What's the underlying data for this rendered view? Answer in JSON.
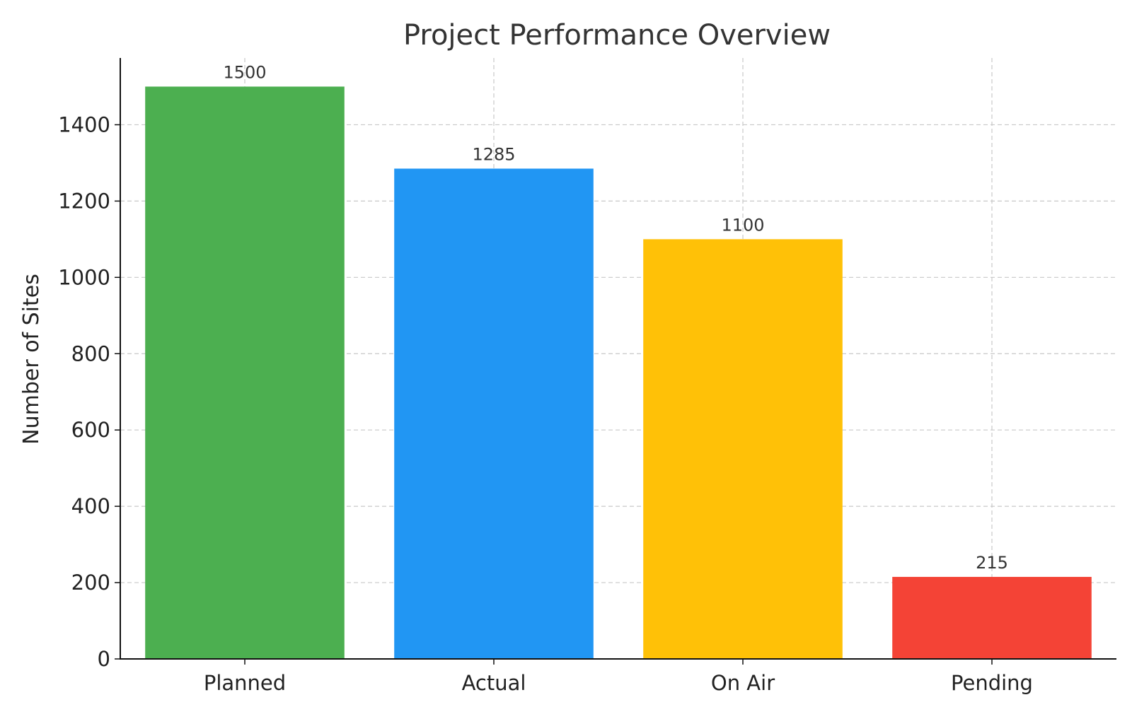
{
  "chart_data": {
    "type": "bar",
    "title": "Project Performance Overview",
    "xlabel": "",
    "ylabel": "Number of Sites",
    "categories": [
      "Planned",
      "Actual",
      "On Air",
      "Pending"
    ],
    "values": [
      1500,
      1285,
      1100,
      215
    ],
    "data_labels": [
      "1500",
      "1285",
      "1100",
      "215"
    ],
    "colors": [
      "#4caf50",
      "#2196f3",
      "#ffc107",
      "#f44336"
    ],
    "ylim": [
      0,
      1575
    ],
    "yticks": [
      0,
      200,
      400,
      600,
      800,
      1000,
      1200,
      1400
    ],
    "grid": true,
    "legend": "none"
  }
}
